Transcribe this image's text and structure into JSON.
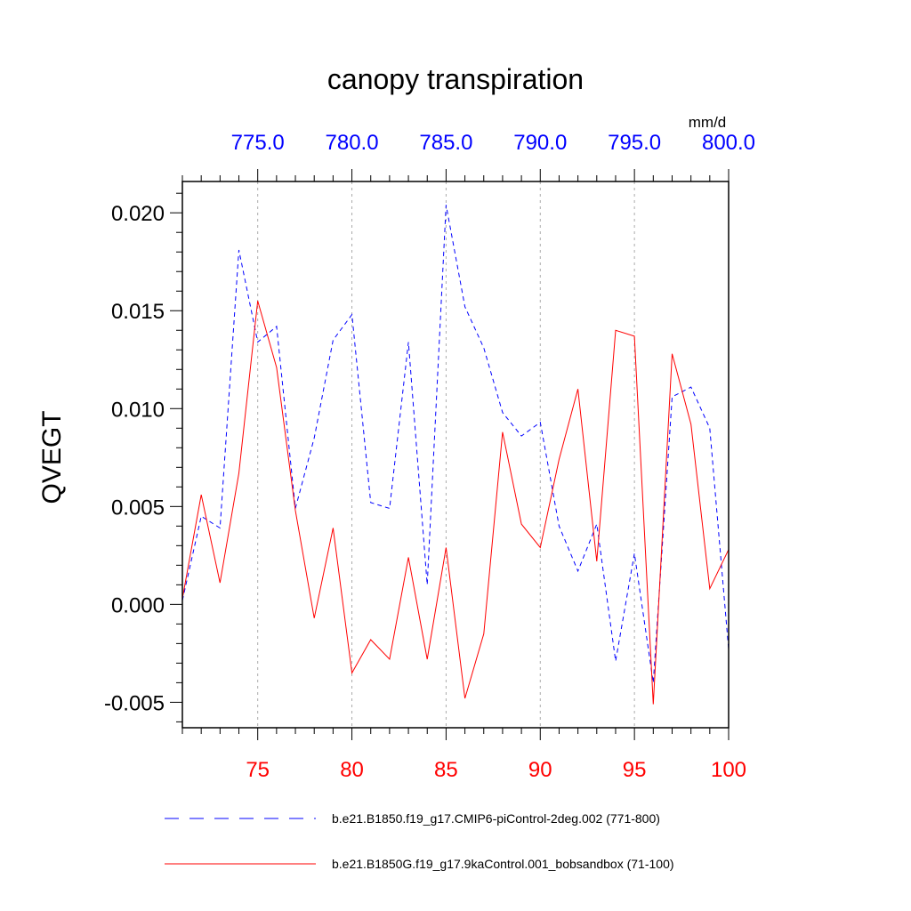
{
  "chart_data": {
    "type": "line",
    "title": "canopy transpiration",
    "ylabel": "QVEGT",
    "units": "mm/d",
    "ylim": [
      -0.0063,
      0.0216
    ],
    "yticks": [
      "0.020",
      "0.015",
      "0.010",
      "0.005",
      "0.000",
      "-0.005"
    ],
    "ytick_values": [
      0.02,
      0.015,
      0.01,
      0.005,
      0.0,
      -0.005
    ],
    "x_bottom": {
      "range": [
        71,
        100
      ],
      "ticks": [
        "75",
        "80",
        "85",
        "90",
        "95",
        "100"
      ],
      "tick_values": [
        75,
        80,
        85,
        90,
        95,
        100
      ],
      "color": "#ff0000"
    },
    "x_top": {
      "range": [
        771,
        800
      ],
      "ticks": [
        "775.0",
        "780.0",
        "785.0",
        "790.0",
        "795.0",
        "800.0"
      ],
      "tick_values": [
        775,
        780,
        785,
        790,
        795,
        800
      ],
      "color": "#0000ff"
    },
    "grid": "vertical dashed at major x ticks",
    "legend_position": "bottom",
    "series": [
      {
        "name": "b.e21.B1850.f19_g17.CMIP6-piControl-2deg.002 (771-800)",
        "color": "#0000ff",
        "style": "dashed",
        "axis": "top",
        "x": [
          771,
          772,
          773,
          774,
          775,
          776,
          777,
          778,
          779,
          780,
          781,
          782,
          783,
          784,
          785,
          786,
          787,
          788,
          789,
          790,
          791,
          792,
          793,
          794,
          795,
          796,
          797,
          798,
          799,
          800
        ],
        "values": [
          0.0002,
          0.0045,
          0.0039,
          0.0181,
          0.0134,
          0.0142,
          0.0049,
          0.0085,
          0.0135,
          0.0148,
          0.0052,
          0.0049,
          0.0134,
          0.001,
          0.0204,
          0.0152,
          0.0131,
          0.0098,
          0.0086,
          0.0093,
          0.004,
          0.0017,
          0.0041,
          -0.0029,
          0.0026,
          -0.004,
          0.0106,
          0.0111,
          0.009,
          -0.0023
        ]
      },
      {
        "name": "b.e21.B1850G.f19_g17.9kaControl.001_bobsandbox (71-100)",
        "color": "#ff0000",
        "style": "solid",
        "axis": "bottom",
        "x": [
          71,
          72,
          73,
          74,
          75,
          76,
          77,
          78,
          79,
          80,
          81,
          82,
          83,
          84,
          85,
          86,
          87,
          88,
          89,
          90,
          91,
          92,
          93,
          94,
          95,
          96,
          97,
          98,
          99,
          100
        ],
        "values": [
          0.0003,
          0.0056,
          0.0011,
          0.0067,
          0.0155,
          0.0121,
          0.0048,
          -0.0007,
          0.0039,
          -0.0035,
          -0.0018,
          -0.0028,
          0.0024,
          -0.0028,
          0.0029,
          -0.0048,
          -0.0015,
          0.0088,
          0.0041,
          0.0029,
          0.0074,
          0.011,
          0.0022,
          0.014,
          0.0137,
          -0.0051,
          0.0128,
          0.0092,
          0.0008,
          0.0028
        ]
      }
    ]
  }
}
